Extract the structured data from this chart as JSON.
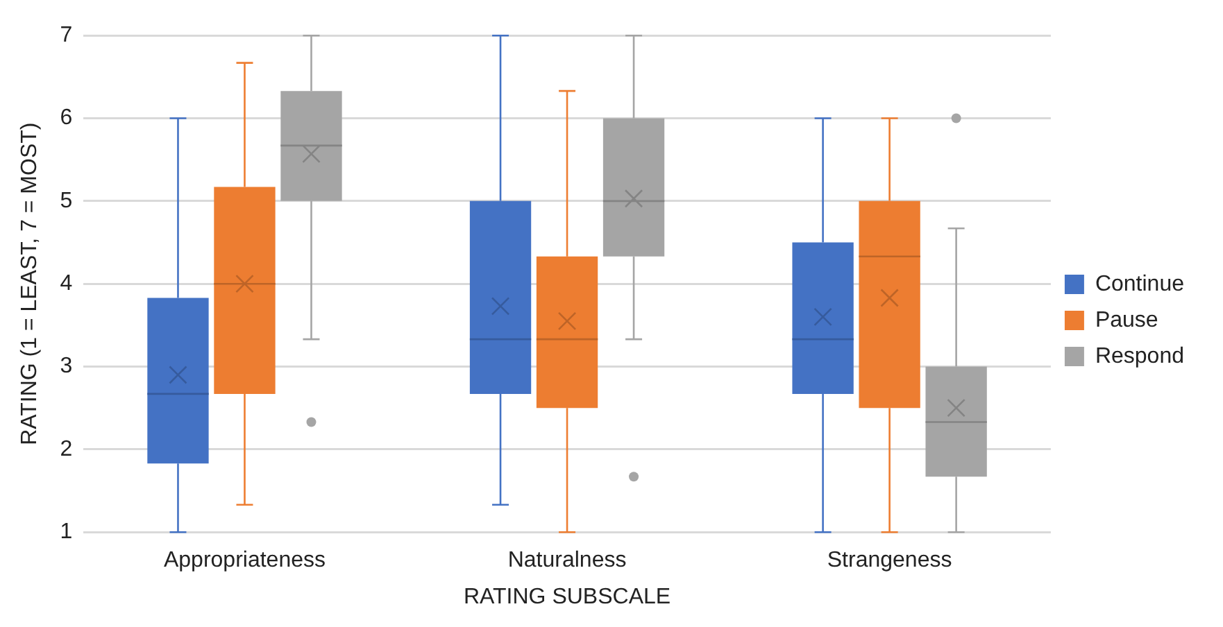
{
  "chart_data": {
    "type": "box",
    "xlabel": "RATING SUBSCALE",
    "ylabel": "RATING (1 = LEAST, 7 = MOST)",
    "categories": [
      "Appropriateness",
      "Naturalness",
      "Strangeness"
    ],
    "ylim": [
      1,
      7
    ],
    "yticks": [
      1,
      2,
      3,
      4,
      5,
      6,
      7
    ],
    "grid": "y",
    "legend": "right",
    "series": [
      {
        "name": "Continue",
        "color": "#4472c4",
        "boxes": [
          {
            "low": 1,
            "q1": 1.83,
            "median": 2.67,
            "q3": 3.83,
            "high": 6,
            "mean": 2.9
          },
          {
            "low": 1.33,
            "q1": 2.67,
            "median": 3.33,
            "q3": 5,
            "high": 7,
            "mean": 3.73
          },
          {
            "low": 1,
            "q1": 2.67,
            "median": 3.33,
            "q3": 4.5,
            "high": 6,
            "mean": 3.6
          }
        ]
      },
      {
        "name": "Pause",
        "color": "#ed7d31",
        "boxes": [
          {
            "low": 1.33,
            "q1": 2.67,
            "median": 4,
            "q3": 5.17,
            "high": 6.67,
            "mean": 4
          },
          {
            "low": 1,
            "q1": 2.5,
            "median": 3.33,
            "q3": 4.33,
            "high": 6.33,
            "mean": 3.55
          },
          {
            "low": 1,
            "q1": 2.5,
            "median": 4.33,
            "q3": 5,
            "high": 6,
            "mean": 3.83
          }
        ]
      },
      {
        "name": "Respond",
        "color": "#a5a5a5",
        "boxes": [
          {
            "low": 3.33,
            "q1": 5,
            "median": 5.67,
            "q3": 6.33,
            "high": 7,
            "mean": 5.57,
            "outliers": [
              2.33
            ]
          },
          {
            "low": 3.33,
            "q1": 4.33,
            "median": 5,
            "q3": 6,
            "high": 7,
            "mean": 5.03,
            "outliers": [
              1.67
            ]
          },
          {
            "low": 1,
            "q1": 1.67,
            "median": 2.33,
            "q3": 3,
            "high": 4.67,
            "mean": 2.5,
            "outliers": [
              6
            ]
          }
        ]
      }
    ]
  }
}
